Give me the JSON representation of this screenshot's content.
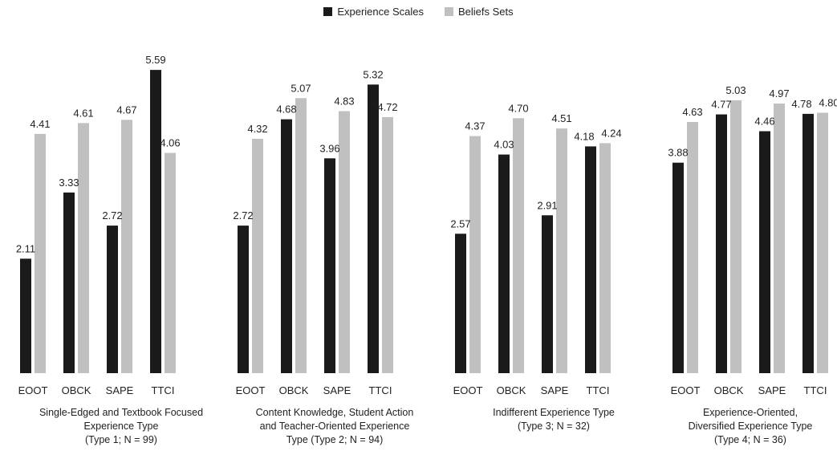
{
  "legend": {
    "items": [
      {
        "label": "Experience Scales",
        "color": "#1a1a1a"
      },
      {
        "label": "Beliefs Sets",
        "color": "#c0c0c0"
      }
    ],
    "position": "top-center"
  },
  "chart_data": {
    "type": "bar",
    "ylim": [
      0,
      5.9
    ],
    "grid": false,
    "categories": [
      "EOOT",
      "OBCK",
      "SAPE",
      "TTCI"
    ],
    "series_names": [
      "Experience Scales",
      "Beliefs Sets"
    ],
    "series_colors": [
      "#1a1a1a",
      "#c0c0c0"
    ],
    "groups": [
      {
        "title_lines": [
          "Single-Edged and Textbook Focused",
          "Experience Type",
          "(Type 1; N = 99)"
        ],
        "experience": [
          2.11,
          3.33,
          2.72,
          5.59
        ],
        "beliefs": [
          4.41,
          4.61,
          4.67,
          4.06
        ],
        "experience_labels": [
          "2.11",
          "3.33",
          "2.72",
          "5.59"
        ],
        "beliefs_labels": [
          "4.41",
          "4.61",
          "4.67",
          "4.06"
        ]
      },
      {
        "title_lines": [
          "Content Knowledge, Student Action",
          "and Teacher-Oriented Experience",
          "Type (Type 2; N = 94)"
        ],
        "experience": [
          2.72,
          4.68,
          3.96,
          5.32
        ],
        "beliefs": [
          4.32,
          5.07,
          4.83,
          4.72
        ],
        "experience_labels": [
          "2.72",
          "4.68",
          "3.96",
          "5.32"
        ],
        "beliefs_labels": [
          "4.32",
          "5.07",
          "4.83",
          "4.72"
        ]
      },
      {
        "title_lines": [
          "Indifferent Experience Type",
          "(Type 3; N = 32)"
        ],
        "experience": [
          2.57,
          4.03,
          2.91,
          4.18
        ],
        "beliefs": [
          4.37,
          4.7,
          4.51,
          4.24
        ],
        "experience_labels": [
          "2.57",
          "4.03",
          "2.91",
          "4.18"
        ],
        "beliefs_labels": [
          "4.37",
          "4.70",
          "4.51",
          "4.24"
        ]
      },
      {
        "title_lines": [
          "Experience-Oriented,",
          "Diversified Experience Type",
          "(Type 4; N = 36)"
        ],
        "experience": [
          3.88,
          4.77,
          4.46,
          4.78
        ],
        "beliefs": [
          4.63,
          5.03,
          4.97,
          4.8
        ],
        "experience_labels": [
          "3.88",
          "4.77",
          "4.46",
          "4.78"
        ],
        "beliefs_labels": [
          "4.63",
          "5.03",
          "4.97",
          "4.80"
        ]
      }
    ]
  }
}
